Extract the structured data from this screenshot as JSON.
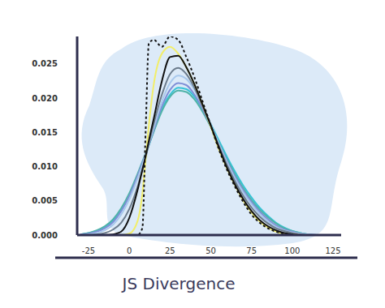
{
  "chart_data": {
    "type": "line",
    "title": "JS Divergence",
    "x": [
      -30,
      -25,
      -20,
      -15,
      -10,
      -5,
      0,
      5,
      8,
      10,
      12,
      15,
      20,
      25,
      30,
      35,
      40,
      45,
      50,
      55,
      60,
      65,
      70,
      75,
      80,
      85,
      90,
      95,
      100,
      105,
      110,
      115,
      120
    ],
    "xlim": [
      -32,
      130
    ],
    "xticks": [
      -25,
      0,
      25,
      50,
      75,
      100,
      125
    ],
    "ylim": [
      0,
      0.029
    ],
    "yticks": [
      {
        "value": 0,
        "label": "0.000"
      },
      {
        "value": 0.005,
        "label": "0.005"
      },
      {
        "value": 0.01,
        "label": "0.010"
      },
      {
        "value": 0.015,
        "label": "0.015"
      },
      {
        "value": 0.02,
        "label": "0.020"
      },
      {
        "value": 0.025,
        "label": "0.025"
      }
    ],
    "grid": false,
    "series": [
      {
        "color": "#35c3d6",
        "line_style": "solid",
        "values": [
          0.0001,
          0.0003,
          0.0006,
          0.0012,
          0.0021,
          0.0036,
          0.0058,
          0.0086,
          0.0104,
          0.0117,
          0.0131,
          0.0152,
          0.0184,
          0.0205,
          0.0215,
          0.0213,
          0.0202,
          0.0184,
          0.0162,
          0.0138,
          0.0114,
          0.0092,
          0.0072,
          0.0055,
          0.004,
          0.0028,
          0.0018,
          0.0011,
          0.0006,
          0.0003,
          0.0001,
          0,
          0
        ]
      },
      {
        "color": "#4fb3a8",
        "line_style": "solid",
        "values": [
          0.0001,
          0.0003,
          0.0007,
          0.0013,
          0.0023,
          0.0039,
          0.0061,
          0.0089,
          0.0107,
          0.0119,
          0.0132,
          0.0151,
          0.0181,
          0.0202,
          0.0211,
          0.0209,
          0.0198,
          0.018,
          0.0158,
          0.0134,
          0.011,
          0.0088,
          0.0068,
          0.0051,
          0.0037,
          0.0026,
          0.0017,
          0.001,
          0.0006,
          0.0003,
          0.0001,
          0,
          0
        ]
      },
      {
        "color": "#7f8fd6",
        "line_style": "solid",
        "values": [
          0.0001,
          0.0002,
          0.0005,
          0.001,
          0.0019,
          0.0035,
          0.0057,
          0.0086,
          0.0105,
          0.0118,
          0.0132,
          0.0154,
          0.0188,
          0.0212,
          0.0222,
          0.0219,
          0.0205,
          0.0184,
          0.0159,
          0.0133,
          0.0108,
          0.0085,
          0.0065,
          0.0048,
          0.0034,
          0.0023,
          0.0014,
          0.0008,
          0.0005,
          0.0002,
          0.0001,
          0,
          0
        ]
      },
      {
        "color": "#a8c8ec",
        "line_style": "solid",
        "values": [
          0,
          0.0001,
          0.0003,
          0.0007,
          0.0015,
          0.003,
          0.0052,
          0.0082,
          0.0102,
          0.0117,
          0.0133,
          0.0157,
          0.0195,
          0.0222,
          0.0233,
          0.0228,
          0.0212,
          0.0188,
          0.0161,
          0.0133,
          0.0106,
          0.0082,
          0.0062,
          0.0045,
          0.0031,
          0.002,
          0.0012,
          0.0007,
          0.0004,
          0.0002,
          0.0001,
          0,
          0
        ]
      },
      {
        "color": "#6b7b8c",
        "line_style": "solid",
        "values": [
          0,
          0,
          0.0001,
          0.0003,
          0.0008,
          0.0018,
          0.0038,
          0.007,
          0.0095,
          0.0113,
          0.0134,
          0.0163,
          0.0205,
          0.0235,
          0.0244,
          0.0235,
          0.0215,
          0.0188,
          0.016,
          0.013,
          0.0102,
          0.0078,
          0.0057,
          0.004,
          0.0027,
          0.0017,
          0.001,
          0.0006,
          0.0003,
          0.0001,
          0,
          0,
          0
        ]
      },
      {
        "color": "#f2ee6a",
        "line_style": "solid",
        "values": [
          0,
          0,
          0,
          0,
          0,
          0,
          0.0002,
          0.002,
          0.006,
          0.011,
          0.016,
          0.022,
          0.0265,
          0.0275,
          0.0265,
          0.0245,
          0.022,
          0.019,
          0.0158,
          0.0125,
          0.0097,
          0.0072,
          0.005,
          0.0033,
          0.002,
          0.0011,
          0.0005,
          0.0002,
          0.0001,
          0,
          0,
          0,
          0
        ]
      },
      {
        "color": "#111111",
        "line_style": "solid",
        "values": [
          0,
          0,
          0,
          0,
          0.0001,
          0.0005,
          0.0025,
          0.0065,
          0.0095,
          0.0115,
          0.0138,
          0.017,
          0.0225,
          0.026,
          0.0262,
          0.0245,
          0.022,
          0.019,
          0.016,
          0.0128,
          0.0098,
          0.0073,
          0.0052,
          0.0035,
          0.0022,
          0.0013,
          0.0007,
          0.0003,
          0.0001,
          0,
          0,
          0,
          0
        ]
      },
      {
        "color": "#111111",
        "line_style": "dotted",
        "values": [
          0,
          0,
          0,
          0,
          0,
          0,
          0,
          0,
          0.001,
          0.015,
          0.028,
          0.0285,
          0.0275,
          0.029,
          0.0285,
          0.026,
          0.023,
          0.0195,
          0.016,
          0.0125,
          0.0095,
          0.007,
          0.0048,
          0.003,
          0.0018,
          0.001,
          0.0005,
          0.0002,
          0.0001,
          0,
          0,
          0,
          0
        ]
      }
    ]
  }
}
